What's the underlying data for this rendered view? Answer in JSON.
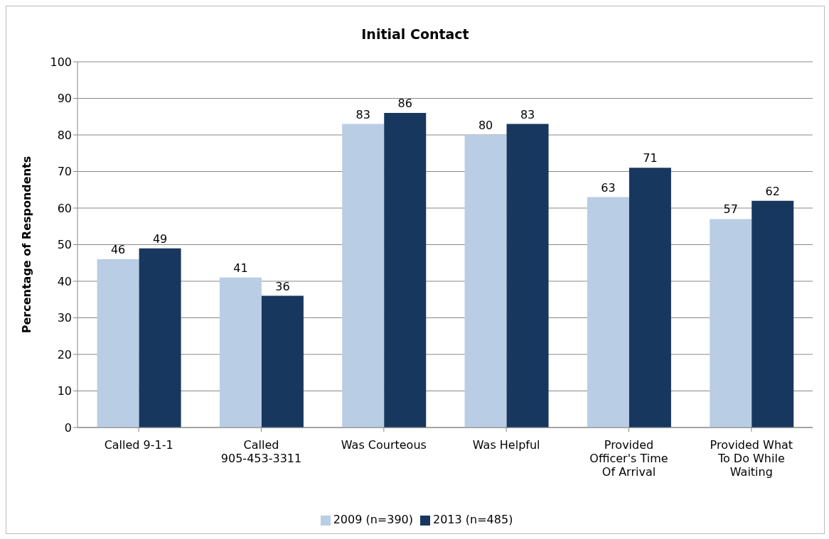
{
  "chart_data": {
    "type": "bar",
    "title": "Initial Contact",
    "ylabel": "Percentage of Respondents",
    "categories": [
      "Called 9-1-1",
      "Called 905-453-3311",
      "Was Courteous",
      "Was Helpful",
      "Provided Officer's Time Of Arrival",
      "Provided What To Do While Waiting"
    ],
    "series": [
      {
        "name": "2009 (n=390)",
        "color": "#b9cde5",
        "values": [
          46,
          41,
          83,
          80,
          63,
          57
        ]
      },
      {
        "name": "2013 (n=485)",
        "color": "#17375e",
        "values": [
          49,
          36,
          86,
          83,
          71,
          62
        ]
      }
    ],
    "ylim": [
      0,
      100
    ],
    "yticks": [
      0,
      10,
      20,
      30,
      40,
      50,
      60,
      70,
      80,
      90,
      100
    ],
    "grid": "y",
    "legend": "bottom",
    "data_labels": true
  }
}
